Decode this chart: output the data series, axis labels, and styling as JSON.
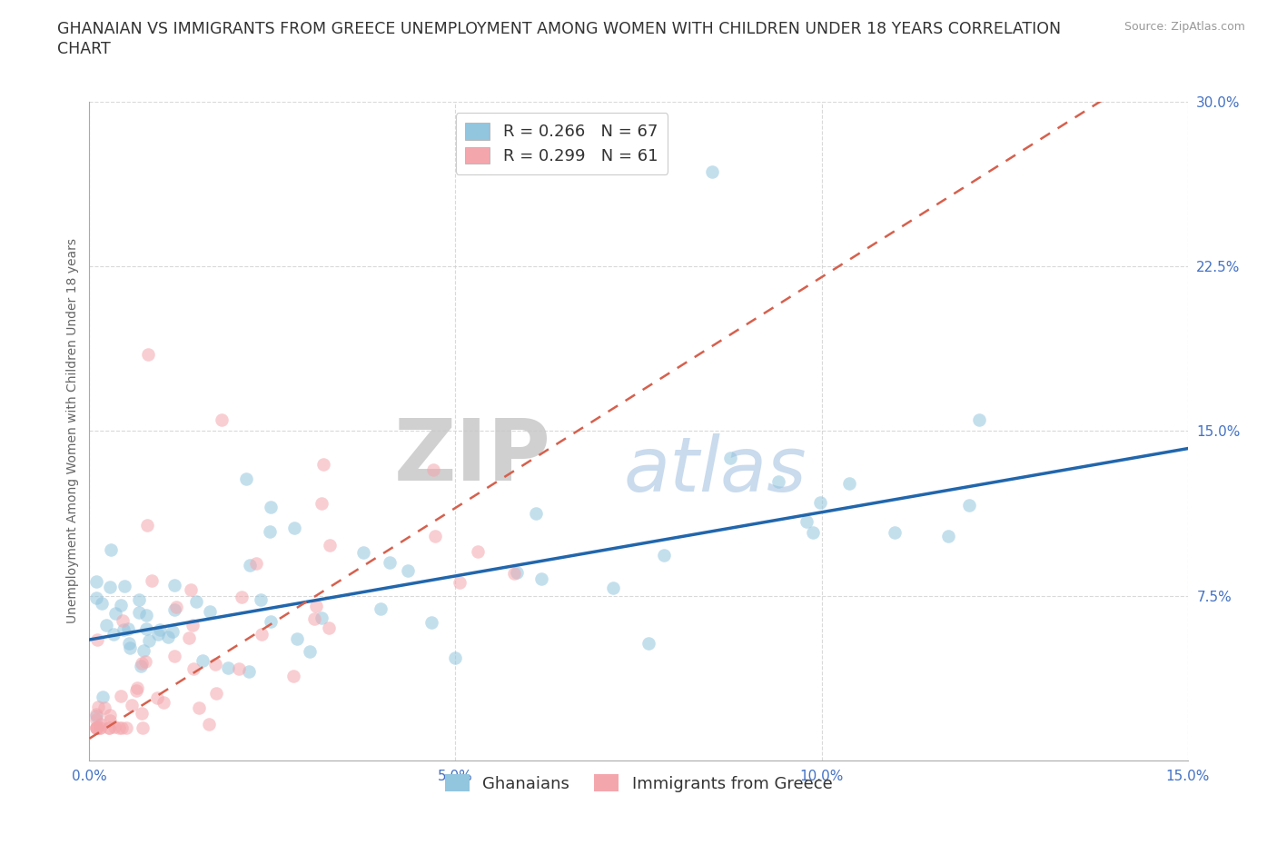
{
  "title_line1": "GHANAIAN VS IMMIGRANTS FROM GREECE UNEMPLOYMENT AMONG WOMEN WITH CHILDREN UNDER 18 YEARS CORRELATION",
  "title_line2": "CHART",
  "source": "Source: ZipAtlas.com",
  "ylabel": "Unemployment Among Women with Children Under 18 years",
  "xlim": [
    0.0,
    0.15
  ],
  "ylim": [
    0.0,
    0.3
  ],
  "xticks": [
    0.0,
    0.05,
    0.1,
    0.15
  ],
  "xticklabels": [
    "0.0%",
    "5.0%",
    "10.0%",
    "15.0%"
  ],
  "yticks": [
    0.075,
    0.15,
    0.225,
    0.3
  ],
  "yticklabels": [
    "7.5%",
    "15.0%",
    "22.5%",
    "30.0%"
  ],
  "watermark_zip": "ZIP",
  "watermark_atlas": "atlas",
  "legend_labels": [
    "Ghanaians",
    "Immigrants from Greece"
  ],
  "R_ghana": 0.266,
  "N_ghana": 67,
  "R_greece": 0.299,
  "N_greece": 61,
  "ghana_color": "#92c5de",
  "greece_color": "#f4a6ad",
  "ghana_line_color": "#2166ac",
  "greece_line_color": "#d6604d",
  "background_color": "#ffffff",
  "grid_color": "#d0d0d0",
  "title_color": "#333333",
  "tick_color": "#4472c4",
  "ylabel_color": "#666666",
  "source_color": "#999999",
  "title_fontsize": 12.5,
  "axis_label_fontsize": 10,
  "tick_fontsize": 11,
  "legend_fontsize": 13,
  "ghana_line_intercept": 0.055,
  "ghana_line_slope": 0.58,
  "greece_line_intercept": 0.01,
  "greece_line_slope": 2.1
}
